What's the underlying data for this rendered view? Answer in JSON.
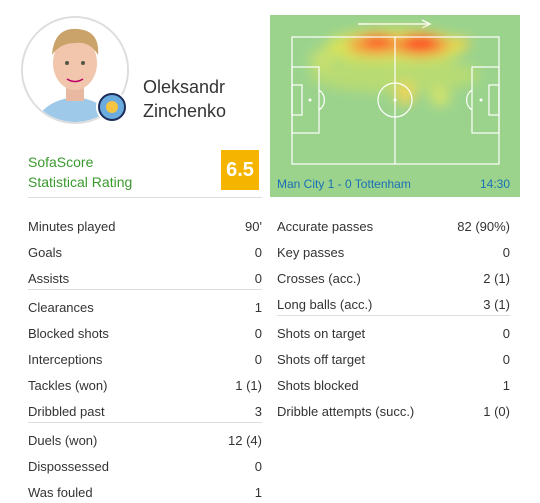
{
  "player": {
    "first_name": "Oleksandr",
    "last_name": "Zinchenko"
  },
  "rating": {
    "label_line1": "SofaScore",
    "label_line2": "Statistical Rating",
    "value": 6.5
  },
  "heatmap": {
    "match": "Man City 1 - 0 Tottenham",
    "time": "14:30"
  },
  "stats": {
    "left": [
      [
        {
          "label": "Minutes played",
          "value": "90'"
        },
        {
          "label": "Goals",
          "value": 0
        },
        {
          "label": "Assists",
          "value": 0
        }
      ],
      [
        {
          "label": "Clearances",
          "value": 1
        },
        {
          "label": "Blocked shots",
          "value": 0
        },
        {
          "label": "Interceptions",
          "value": 0
        },
        {
          "label": "Tackles (won)",
          "value": "1 (1)"
        },
        {
          "label": "Dribbled past",
          "value": 3
        }
      ],
      [
        {
          "label": "Duels (won)",
          "value": "12 (4)"
        },
        {
          "label": "Dispossessed",
          "value": 0
        },
        {
          "label": "Was fouled",
          "value": 1
        }
      ]
    ],
    "right": [
      [
        {
          "label": "Accurate passes",
          "value": "82 (90%)"
        },
        {
          "label": "Key passes",
          "value": 0
        },
        {
          "label": "Crosses (acc.)",
          "value": "2 (1)"
        },
        {
          "label": "Long balls (acc.)",
          "value": "3 (1)"
        }
      ],
      [
        {
          "label": "Shots on target",
          "value": 0
        },
        {
          "label": "Shots off target",
          "value": 0
        },
        {
          "label": "Shots blocked",
          "value": 1
        },
        {
          "label": "Dribble attempts (succ.)",
          "value": "1 (0)"
        }
      ]
    ]
  }
}
